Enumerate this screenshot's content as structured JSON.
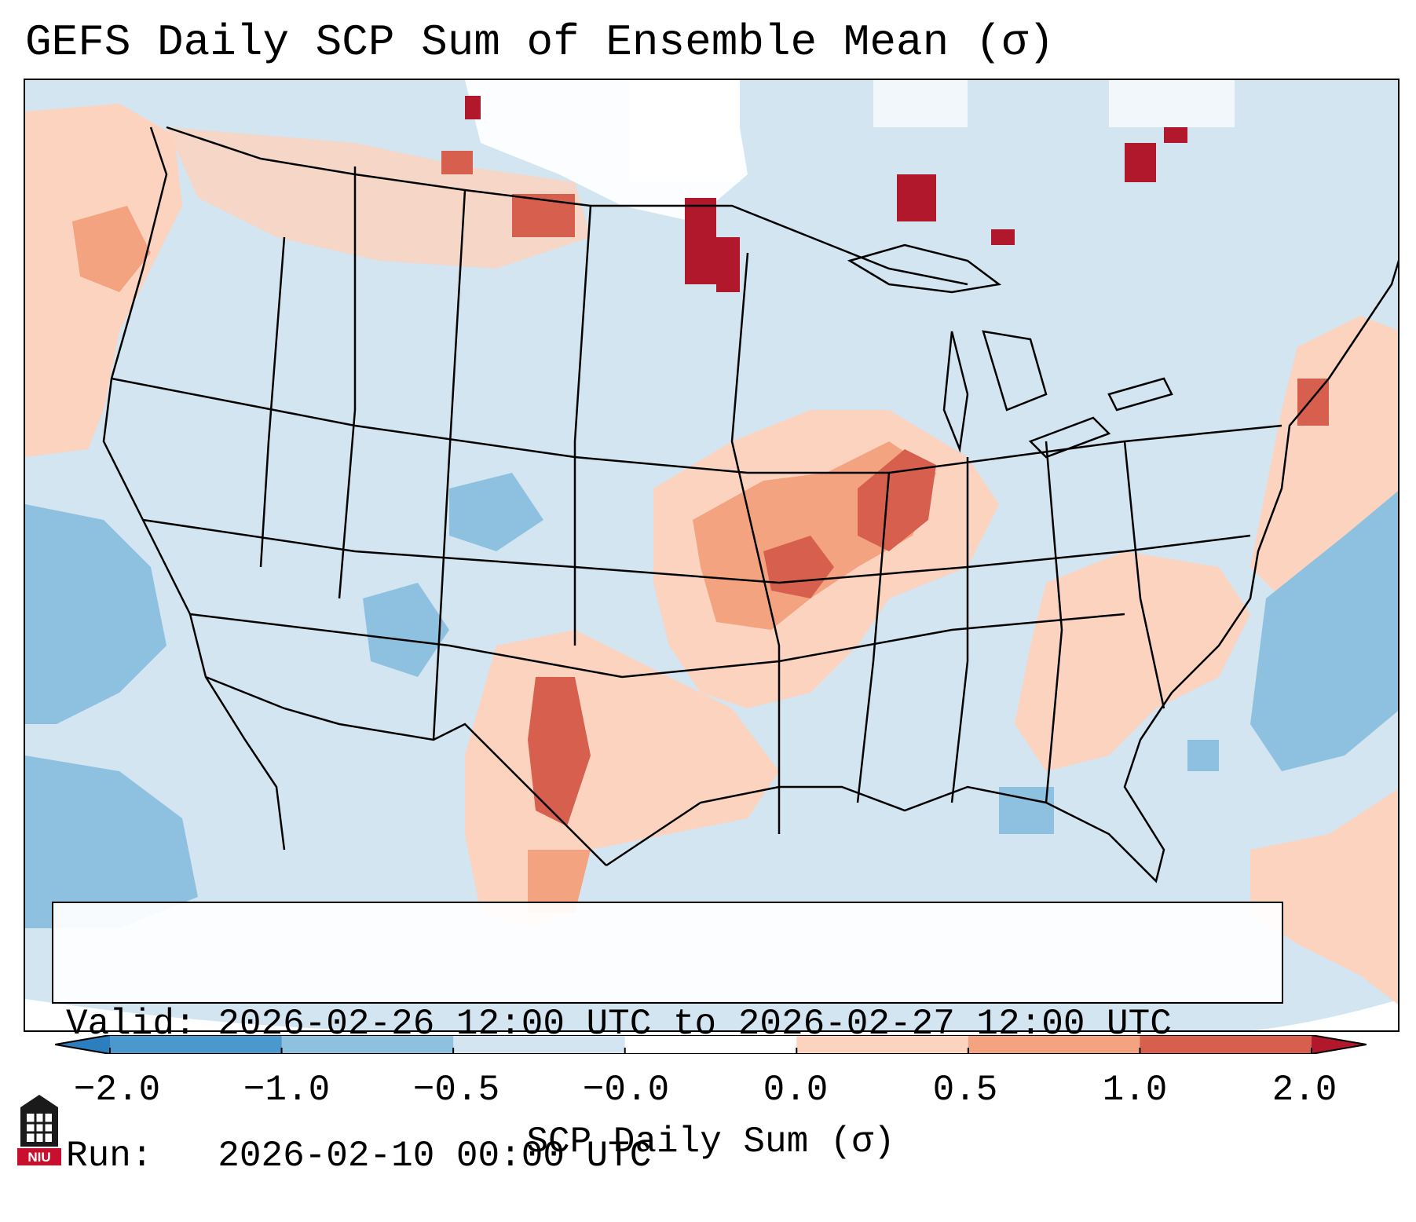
{
  "title": "GEFS Daily SCP Sum of Ensemble Mean (σ)",
  "info": {
    "valid_label": "Valid:",
    "valid_value": "2026-02-26 12:00 UTC to 2026-02-27 12:00 UTC",
    "run_label": "Run:",
    "run_value": "2026-02-10 00:00 UTC"
  },
  "colorbar": {
    "label": "SCP Daily Sum (σ)",
    "ticks": [
      "−2.0",
      "−1.0",
      "−0.5",
      "−0.0",
      "0.0",
      "0.5",
      "1.0",
      "2.0"
    ],
    "bins": [
      {
        "from": "-inf",
        "to": -2.0,
        "color": "#2c7fbf"
      },
      {
        "from": -2.0,
        "to": -1.0,
        "color": "#4a98cc"
      },
      {
        "from": -1.0,
        "to": -0.5,
        "color": "#8ec1e0"
      },
      {
        "from": -0.5,
        "to": 0.0,
        "color": "#d2e5f1"
      },
      {
        "from": 0.0,
        "to": 0.0,
        "color": "#ffffff"
      },
      {
        "from": 0.0,
        "to": 0.5,
        "color": "#fcd3bf"
      },
      {
        "from": 0.5,
        "to": 1.0,
        "color": "#f4a380"
      },
      {
        "from": 1.0,
        "to": 2.0,
        "color": "#d6604d"
      },
      {
        "from": 2.0,
        "to": "inf",
        "color": "#b2182b"
      }
    ]
  },
  "map": {
    "region": "Continental United States",
    "background_color": "#d2e5f1",
    "regions": [
      {
        "name": "pacific-northwest",
        "category": "0.0 to 0.5"
      },
      {
        "name": "central-plains-mississippi-valley",
        "category": "0.5 to 1.0"
      },
      {
        "name": "missouri-illinois-core",
        "category": "1.0 to 2.0"
      },
      {
        "name": "texas-oklahoma",
        "category": "0.0 to 0.5"
      },
      {
        "name": "west-texas-core",
        "category": "1.0 to 2.0"
      },
      {
        "name": "southeast-carolinas",
        "category": "0.0 to 0.5"
      },
      {
        "name": "northeast-coast",
        "category": "0.0 to 0.5"
      },
      {
        "name": "atlantic-ocean",
        "category": "-1.0 to -0.5"
      },
      {
        "name": "eastern-pacific",
        "category": "-1.0 to -0.5"
      },
      {
        "name": "southern-canada-hotspots",
        "category": "> 2.0"
      },
      {
        "name": "caribbean",
        "category": "0.0 to 0.5"
      }
    ]
  },
  "logo": {
    "text": "NIU"
  }
}
